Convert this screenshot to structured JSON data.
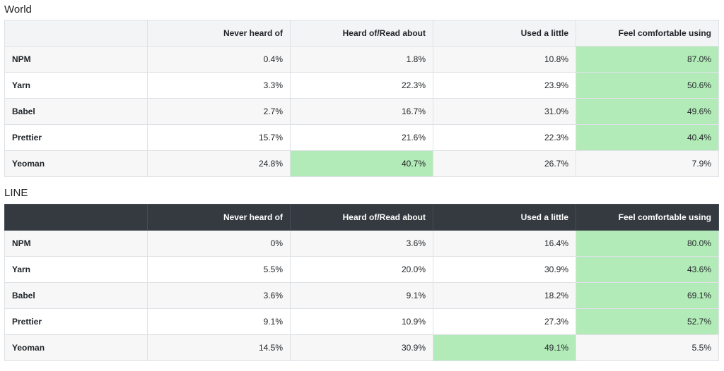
{
  "columns": [
    "",
    "Never heard of",
    "Heard of/Read about",
    "Used a little",
    "Feel comfortable using"
  ],
  "tables": [
    {
      "title": "World",
      "rows": [
        {
          "label": "NPM",
          "values": [
            "0.4%",
            "1.8%",
            "10.8%",
            "87.0%"
          ],
          "highlight": 3
        },
        {
          "label": "Yarn",
          "values": [
            "3.3%",
            "22.3%",
            "23.9%",
            "50.6%"
          ],
          "highlight": 3
        },
        {
          "label": "Babel",
          "values": [
            "2.7%",
            "16.7%",
            "31.0%",
            "49.6%"
          ],
          "highlight": 3
        },
        {
          "label": "Prettier",
          "values": [
            "15.7%",
            "21.6%",
            "22.3%",
            "40.4%"
          ],
          "highlight": 3
        },
        {
          "label": "Yeoman",
          "values": [
            "24.8%",
            "40.7%",
            "26.7%",
            "7.9%"
          ],
          "highlight": 1
        }
      ]
    },
    {
      "title": "LINE",
      "rows": [
        {
          "label": "NPM",
          "values": [
            "0%",
            "3.6%",
            "16.4%",
            "80.0%"
          ],
          "highlight": 3
        },
        {
          "label": "Yarn",
          "values": [
            "5.5%",
            "20.0%",
            "30.9%",
            "43.6%"
          ],
          "highlight": 3
        },
        {
          "label": "Babel",
          "values": [
            "3.6%",
            "9.1%",
            "18.2%",
            "69.1%"
          ],
          "highlight": 3
        },
        {
          "label": "Prettier",
          "values": [
            "9.1%",
            "10.9%",
            "27.3%",
            "52.7%"
          ],
          "highlight": 3
        },
        {
          "label": "Yeoman",
          "values": [
            "14.5%",
            "30.9%",
            "49.1%",
            "5.5%"
          ],
          "highlight": 2
        }
      ]
    }
  ],
  "colors": {
    "highlight": "#b3ebb8",
    "dark_header": "#343a40",
    "light_header": "#f3f4f5"
  }
}
